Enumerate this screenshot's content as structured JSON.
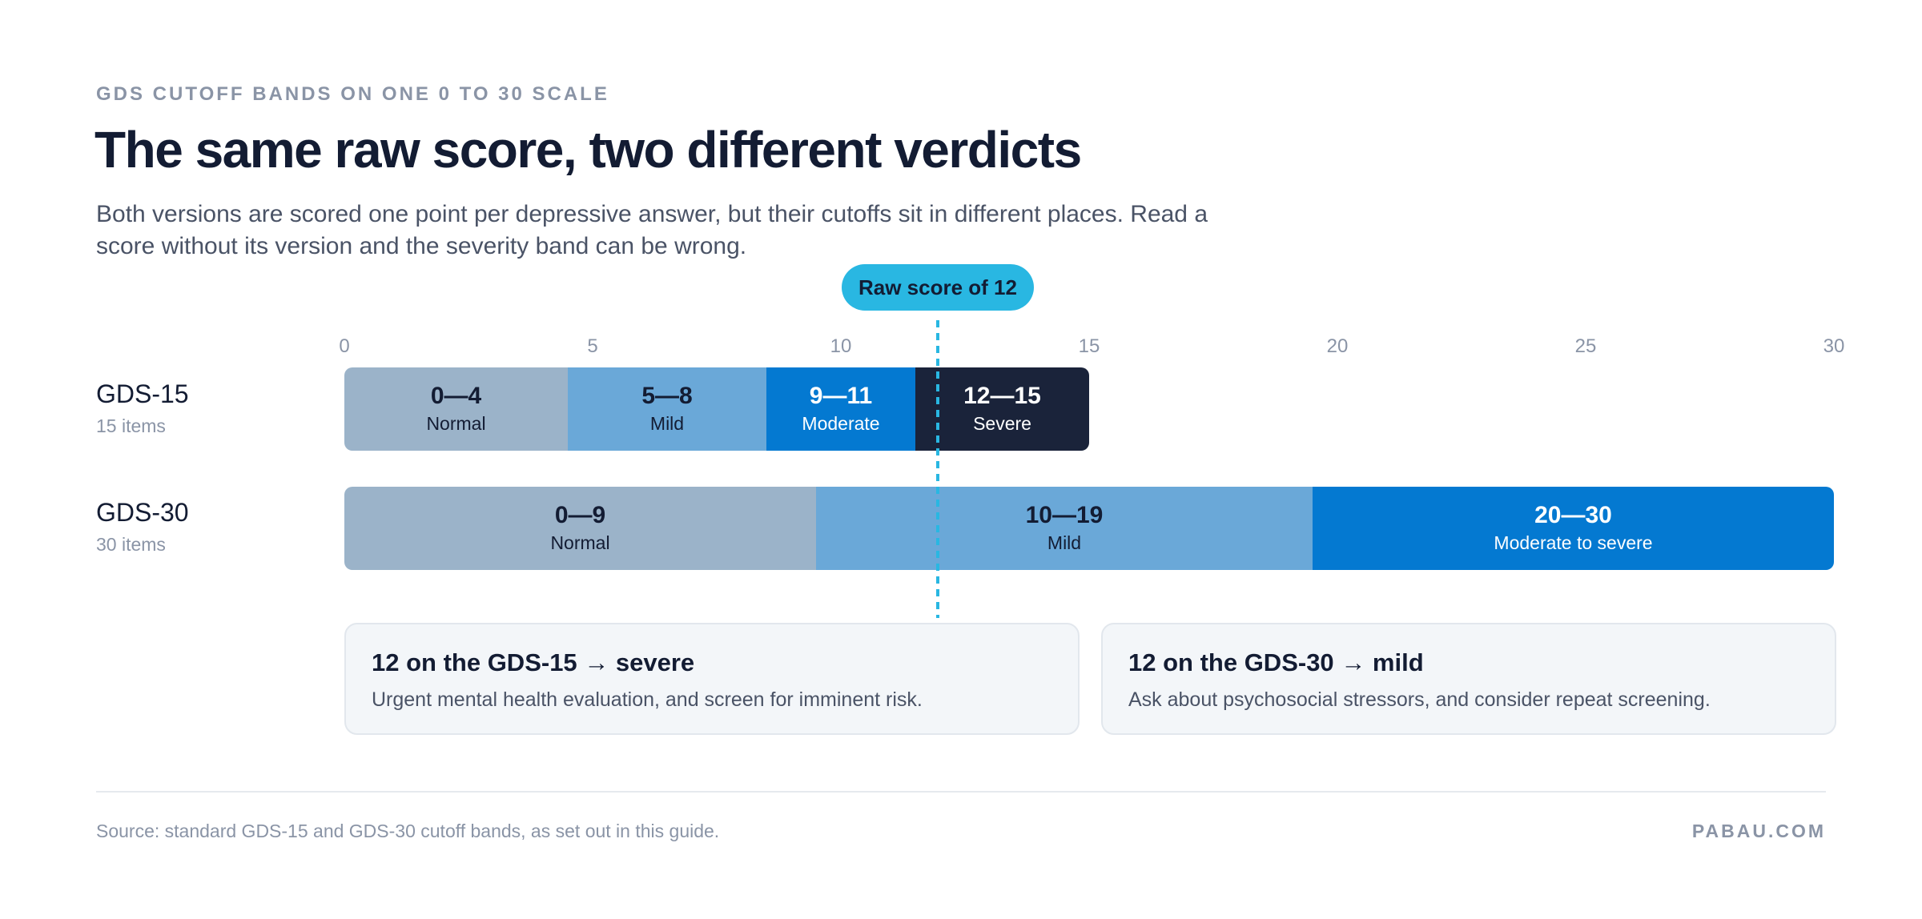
{
  "header": {
    "eyebrow": "GDS CUTOFF BANDS ON ONE 0 TO 30 SCALE",
    "title": "The same raw score, two different verdicts",
    "subtitle": "Both versions are scored one point per depressive answer, but their cutoffs sit in different places. Read a score without its version and the severity band can be wrong."
  },
  "chart_data": {
    "type": "bar",
    "orientation": "horizontal",
    "xlim": [
      0,
      30
    ],
    "ticks": [
      0,
      5,
      10,
      15,
      20,
      25,
      30
    ],
    "marker": {
      "value": 12,
      "label": "Raw score of 12",
      "color": "#29b7e2"
    },
    "rows": [
      {
        "name": "GDS-15",
        "items": "15 items",
        "bands": [
          {
            "range": "0—4",
            "label": "Normal",
            "start": 0,
            "end": 4.5,
            "color": "#9bb3c9",
            "text_color": "#131c33"
          },
          {
            "range": "5—8",
            "label": "Mild",
            "start": 4.5,
            "end": 8.5,
            "color": "#6aa8d8",
            "text_color": "#131c33"
          },
          {
            "range": "9—11",
            "label": "Moderate",
            "start": 8.5,
            "end": 11.5,
            "color": "#0479d1",
            "text_color": "#ffffff"
          },
          {
            "range": "12—15",
            "label": "Severe",
            "start": 11.5,
            "end": 15,
            "color": "#1a233a",
            "text_color": "#ffffff"
          }
        ]
      },
      {
        "name": "GDS-30",
        "items": "30 items",
        "bands": [
          {
            "range": "0—9",
            "label": "Normal",
            "start": 0,
            "end": 9.5,
            "color": "#9bb3c9",
            "text_color": "#131c33"
          },
          {
            "range": "10—19",
            "label": "Mild",
            "start": 9.5,
            "end": 19.5,
            "color": "#6aa8d8",
            "text_color": "#131c33"
          },
          {
            "range": "20—30",
            "label": "Moderate to severe",
            "start": 19.5,
            "end": 30,
            "color": "#0479d1",
            "text_color": "#ffffff"
          }
        ]
      }
    ]
  },
  "cards": [
    {
      "title": "12 on the GDS-15 → severe",
      "text": "Urgent mental health evaluation, and screen for imminent risk."
    },
    {
      "title": "12 on the GDS-30 → mild",
      "text": "Ask about psychosocial stressors, and consider repeat screening."
    }
  ],
  "footer": {
    "source": "Source: standard GDS-15 and GDS-30 cutoff bands, as set out in this guide.",
    "brand": "PABAU.COM"
  }
}
